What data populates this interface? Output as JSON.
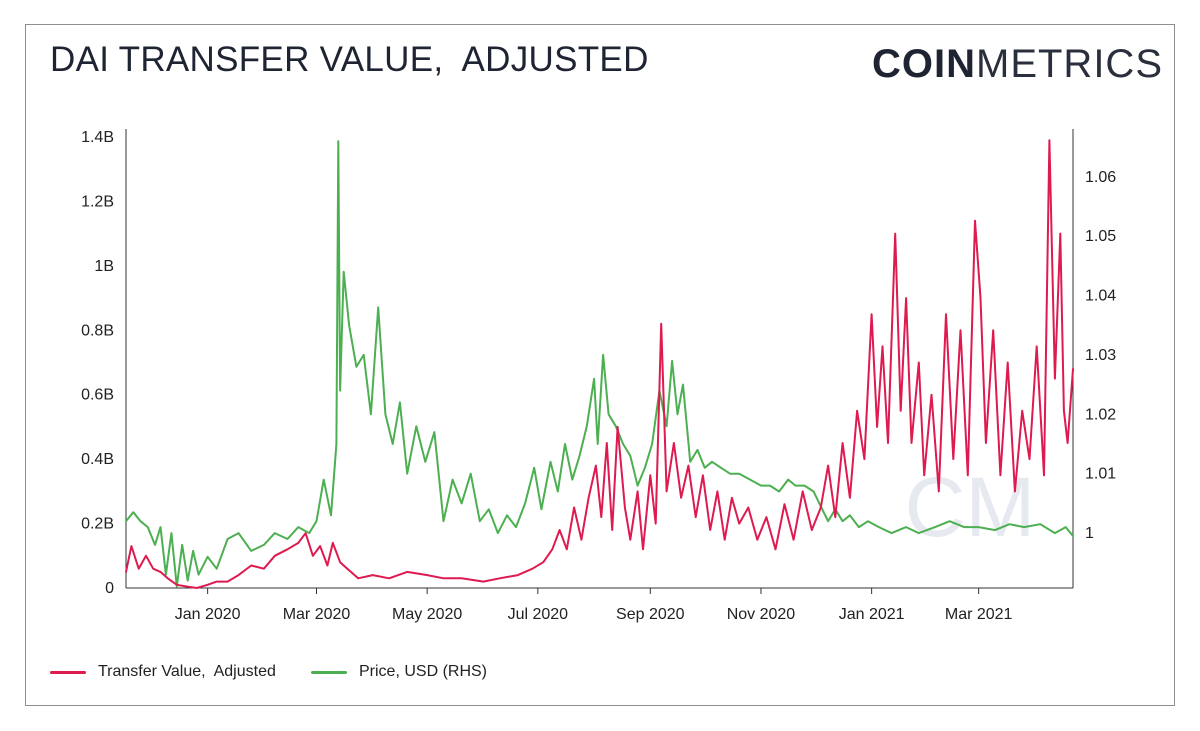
{
  "header": {
    "title": "DAI TRANSFER VALUE,  ADJUSTED",
    "logo_bold": "COIN",
    "logo_light": "METRICS"
  },
  "colors": {
    "transfer": "#de1a4f",
    "price": "#4caf50",
    "axis": "#333333",
    "watermark": "#e6e9f0"
  },
  "chart_data": {
    "type": "line",
    "title": "DAI TRANSFER VALUE,  ADJUSTED",
    "x_range": [
      "2019-11-17",
      "2021-04-22"
    ],
    "x_ticks": [
      {
        "date": "2020-01-01",
        "label": "Jan 2020"
      },
      {
        "date": "2020-03-01",
        "label": "Mar 2020"
      },
      {
        "date": "2020-05-01",
        "label": "May 2020"
      },
      {
        "date": "2020-07-01",
        "label": "Jul 2020"
      },
      {
        "date": "2020-09-01",
        "label": "Sep 2020"
      },
      {
        "date": "2020-11-01",
        "label": "Nov 2020"
      },
      {
        "date": "2021-01-01",
        "label": "Jan 2021"
      },
      {
        "date": "2021-03-01",
        "label": "Mar 2021"
      }
    ],
    "y_left": {
      "range": [
        0,
        1.4
      ],
      "unit": "billion USD",
      "ticks": [
        {
          "value": 0,
          "label": "0"
        },
        {
          "value": 0.2,
          "label": "0.2B"
        },
        {
          "value": 0.4,
          "label": "0.4B"
        },
        {
          "value": 0.6,
          "label": "0.6B"
        },
        {
          "value": 0.8,
          "label": "0.8B"
        },
        {
          "value": 1.0,
          "label": "1B"
        },
        {
          "value": 1.2,
          "label": "1.2B"
        },
        {
          "value": 1.4,
          "label": "1.4B"
        }
      ]
    },
    "y_right": {
      "range": [
        0.99075,
        1.0667
      ],
      "ticks": [
        {
          "value": 1.0,
          "label": "1"
        },
        {
          "value": 1.01,
          "label": "1.01"
        },
        {
          "value": 1.02,
          "label": "1.02"
        },
        {
          "value": 1.03,
          "label": "1.03"
        },
        {
          "value": 1.04,
          "label": "1.04"
        },
        {
          "value": 1.05,
          "label": "1.05"
        },
        {
          "value": 1.06,
          "label": "1.06"
        }
      ]
    },
    "legend_position": "bottom-left",
    "series": [
      {
        "name": "Transfer Value,  Adjusted",
        "axis": "left",
        "points": [
          [
            "2019-11-17",
            0.05
          ],
          [
            "2019-11-20",
            0.13
          ],
          [
            "2019-11-24",
            0.06
          ],
          [
            "2019-11-28",
            0.1
          ],
          [
            "2019-12-02",
            0.06
          ],
          [
            "2019-12-06",
            0.05
          ],
          [
            "2019-12-10",
            0.03
          ],
          [
            "2019-12-15",
            0.01
          ],
          [
            "2019-12-20",
            0.005
          ],
          [
            "2019-12-26",
            0.0
          ],
          [
            "2020-01-01",
            0.01
          ],
          [
            "2020-01-06",
            0.02
          ],
          [
            "2020-01-12",
            0.02
          ],
          [
            "2020-01-18",
            0.04
          ],
          [
            "2020-01-25",
            0.07
          ],
          [
            "2020-02-01",
            0.06
          ],
          [
            "2020-02-07",
            0.1
          ],
          [
            "2020-02-14",
            0.12
          ],
          [
            "2020-02-20",
            0.14
          ],
          [
            "2020-02-24",
            0.17
          ],
          [
            "2020-02-28",
            0.1
          ],
          [
            "2020-03-03",
            0.13
          ],
          [
            "2020-03-07",
            0.07
          ],
          [
            "2020-03-10",
            0.14
          ],
          [
            "2020-03-14",
            0.08
          ],
          [
            "2020-03-18",
            0.06
          ],
          [
            "2020-03-24",
            0.03
          ],
          [
            "2020-04-01",
            0.04
          ],
          [
            "2020-04-10",
            0.03
          ],
          [
            "2020-04-20",
            0.05
          ],
          [
            "2020-05-01",
            0.04
          ],
          [
            "2020-05-10",
            0.03
          ],
          [
            "2020-05-20",
            0.03
          ],
          [
            "2020-06-01",
            0.02
          ],
          [
            "2020-06-10",
            0.03
          ],
          [
            "2020-06-20",
            0.04
          ],
          [
            "2020-06-28",
            0.06
          ],
          [
            "2020-07-04",
            0.08
          ],
          [
            "2020-07-09",
            0.12
          ],
          [
            "2020-07-13",
            0.18
          ],
          [
            "2020-07-17",
            0.12
          ],
          [
            "2020-07-21",
            0.25
          ],
          [
            "2020-07-25",
            0.15
          ],
          [
            "2020-07-29",
            0.28
          ],
          [
            "2020-08-02",
            0.38
          ],
          [
            "2020-08-05",
            0.22
          ],
          [
            "2020-08-08",
            0.45
          ],
          [
            "2020-08-11",
            0.18
          ],
          [
            "2020-08-14",
            0.5
          ],
          [
            "2020-08-18",
            0.25
          ],
          [
            "2020-08-21",
            0.15
          ],
          [
            "2020-08-25",
            0.3
          ],
          [
            "2020-08-28",
            0.12
          ],
          [
            "2020-09-01",
            0.35
          ],
          [
            "2020-09-04",
            0.2
          ],
          [
            "2020-09-07",
            0.82
          ],
          [
            "2020-09-10",
            0.3
          ],
          [
            "2020-09-14",
            0.45
          ],
          [
            "2020-09-18",
            0.28
          ],
          [
            "2020-09-22",
            0.38
          ],
          [
            "2020-09-26",
            0.22
          ],
          [
            "2020-09-30",
            0.35
          ],
          [
            "2020-10-04",
            0.18
          ],
          [
            "2020-10-08",
            0.3
          ],
          [
            "2020-10-12",
            0.15
          ],
          [
            "2020-10-16",
            0.28
          ],
          [
            "2020-10-20",
            0.2
          ],
          [
            "2020-10-25",
            0.25
          ],
          [
            "2020-10-30",
            0.15
          ],
          [
            "2020-11-04",
            0.22
          ],
          [
            "2020-11-09",
            0.12
          ],
          [
            "2020-11-14",
            0.26
          ],
          [
            "2020-11-19",
            0.15
          ],
          [
            "2020-11-24",
            0.3
          ],
          [
            "2020-11-29",
            0.18
          ],
          [
            "2020-12-04",
            0.25
          ],
          [
            "2020-12-08",
            0.38
          ],
          [
            "2020-12-12",
            0.22
          ],
          [
            "2020-12-16",
            0.45
          ],
          [
            "2020-12-20",
            0.28
          ],
          [
            "2020-12-24",
            0.55
          ],
          [
            "2020-12-28",
            0.4
          ],
          [
            "2021-01-01",
            0.85
          ],
          [
            "2021-01-04",
            0.5
          ],
          [
            "2021-01-07",
            0.75
          ],
          [
            "2021-01-10",
            0.45
          ],
          [
            "2021-01-14",
            1.1
          ],
          [
            "2021-01-17",
            0.55
          ],
          [
            "2021-01-20",
            0.9
          ],
          [
            "2021-01-23",
            0.45
          ],
          [
            "2021-01-27",
            0.7
          ],
          [
            "2021-01-30",
            0.35
          ],
          [
            "2021-02-03",
            0.6
          ],
          [
            "2021-02-07",
            0.3
          ],
          [
            "2021-02-11",
            0.85
          ],
          [
            "2021-02-15",
            0.4
          ],
          [
            "2021-02-19",
            0.8
          ],
          [
            "2021-02-23",
            0.35
          ],
          [
            "2021-02-27",
            1.14
          ],
          [
            "2021-03-02",
            0.9
          ],
          [
            "2021-03-05",
            0.45
          ],
          [
            "2021-03-09",
            0.8
          ],
          [
            "2021-03-13",
            0.35
          ],
          [
            "2021-03-17",
            0.7
          ],
          [
            "2021-03-21",
            0.3
          ],
          [
            "2021-03-25",
            0.55
          ],
          [
            "2021-03-29",
            0.4
          ],
          [
            "2021-04-02",
            0.75
          ],
          [
            "2021-04-06",
            0.35
          ],
          [
            "2021-04-09",
            1.39
          ],
          [
            "2021-04-12",
            0.65
          ],
          [
            "2021-04-15",
            1.1
          ],
          [
            "2021-04-17",
            0.55
          ],
          [
            "2021-04-19",
            0.45
          ],
          [
            "2021-04-22",
            0.68
          ]
        ]
      },
      {
        "name": "Price, USD (RHS)",
        "axis": "right",
        "points": [
          [
            "2019-11-17",
            1.002
          ],
          [
            "2019-11-21",
            1.0035
          ],
          [
            "2019-11-25",
            1.002
          ],
          [
            "2019-11-29",
            1.001
          ],
          [
            "2019-12-03",
            0.998
          ],
          [
            "2019-12-06",
            1.001
          ],
          [
            "2019-12-09",
            0.993
          ],
          [
            "2019-12-12",
            1.0
          ],
          [
            "2019-12-15",
            0.991
          ],
          [
            "2019-12-18",
            0.998
          ],
          [
            "2019-12-21",
            0.992
          ],
          [
            "2019-12-24",
            0.997
          ],
          [
            "2019-12-27",
            0.993
          ],
          [
            "2020-01-01",
            0.996
          ],
          [
            "2020-01-06",
            0.994
          ],
          [
            "2020-01-12",
            0.999
          ],
          [
            "2020-01-18",
            1.0
          ],
          [
            "2020-01-25",
            0.997
          ],
          [
            "2020-02-01",
            0.998
          ],
          [
            "2020-02-07",
            1.0
          ],
          [
            "2020-02-14",
            0.999
          ],
          [
            "2020-02-20",
            1.001
          ],
          [
            "2020-02-26",
            1.0
          ],
          [
            "2020-03-01",
            1.002
          ],
          [
            "2020-03-05",
            1.009
          ],
          [
            "2020-03-09",
            1.003
          ],
          [
            "2020-03-12",
            1.015
          ],
          [
            "2020-03-13",
            1.066
          ],
          [
            "2020-03-14",
            1.024
          ],
          [
            "2020-03-16",
            1.044
          ],
          [
            "2020-03-19",
            1.035
          ],
          [
            "2020-03-23",
            1.028
          ],
          [
            "2020-03-27",
            1.03
          ],
          [
            "2020-03-31",
            1.02
          ],
          [
            "2020-04-04",
            1.038
          ],
          [
            "2020-04-08",
            1.02
          ],
          [
            "2020-04-12",
            1.015
          ],
          [
            "2020-04-16",
            1.022
          ],
          [
            "2020-04-20",
            1.01
          ],
          [
            "2020-04-25",
            1.018
          ],
          [
            "2020-04-30",
            1.012
          ],
          [
            "2020-05-05",
            1.017
          ],
          [
            "2020-05-10",
            1.002
          ],
          [
            "2020-05-15",
            1.009
          ],
          [
            "2020-05-20",
            1.005
          ],
          [
            "2020-05-25",
            1.01
          ],
          [
            "2020-05-30",
            1.002
          ],
          [
            "2020-06-04",
            1.004
          ],
          [
            "2020-06-09",
            1.0
          ],
          [
            "2020-06-14",
            1.003
          ],
          [
            "2020-06-19",
            1.001
          ],
          [
            "2020-06-24",
            1.005
          ],
          [
            "2020-06-29",
            1.011
          ],
          [
            "2020-07-03",
            1.004
          ],
          [
            "2020-07-08",
            1.012
          ],
          [
            "2020-07-12",
            1.007
          ],
          [
            "2020-07-16",
            1.015
          ],
          [
            "2020-07-20",
            1.009
          ],
          [
            "2020-07-24",
            1.013
          ],
          [
            "2020-07-28",
            1.018
          ],
          [
            "2020-08-01",
            1.026
          ],
          [
            "2020-08-03",
            1.015
          ],
          [
            "2020-08-06",
            1.03
          ],
          [
            "2020-08-09",
            1.02
          ],
          [
            "2020-08-13",
            1.018
          ],
          [
            "2020-08-17",
            1.015
          ],
          [
            "2020-08-21",
            1.013
          ],
          [
            "2020-08-25",
            1.008
          ],
          [
            "2020-08-29",
            1.011
          ],
          [
            "2020-09-02",
            1.015
          ],
          [
            "2020-09-06",
            1.024
          ],
          [
            "2020-09-10",
            1.018
          ],
          [
            "2020-09-13",
            1.029
          ],
          [
            "2020-09-16",
            1.02
          ],
          [
            "2020-09-19",
            1.025
          ],
          [
            "2020-09-23",
            1.012
          ],
          [
            "2020-09-27",
            1.014
          ],
          [
            "2020-10-01",
            1.011
          ],
          [
            "2020-10-05",
            1.012
          ],
          [
            "2020-10-10",
            1.011
          ],
          [
            "2020-10-15",
            1.01
          ],
          [
            "2020-10-20",
            1.01
          ],
          [
            "2020-10-26",
            1.009
          ],
          [
            "2020-11-01",
            1.008
          ],
          [
            "2020-11-06",
            1.008
          ],
          [
            "2020-11-11",
            1.007
          ],
          [
            "2020-11-16",
            1.009
          ],
          [
            "2020-11-20",
            1.008
          ],
          [
            "2020-11-25",
            1.008
          ],
          [
            "2020-11-30",
            1.007
          ],
          [
            "2020-12-04",
            1.0045
          ],
          [
            "2020-12-08",
            1.002
          ],
          [
            "2020-12-12",
            1.004
          ],
          [
            "2020-12-16",
            1.002
          ],
          [
            "2020-12-20",
            1.003
          ],
          [
            "2020-12-25",
            1.001
          ],
          [
            "2020-12-30",
            1.002
          ],
          [
            "2021-01-05",
            1.001
          ],
          [
            "2021-01-12",
            1.0
          ],
          [
            "2021-01-20",
            1.001
          ],
          [
            "2021-01-27",
            1.0
          ],
          [
            "2021-02-05",
            1.001
          ],
          [
            "2021-02-13",
            1.002
          ],
          [
            "2021-02-21",
            1.001
          ],
          [
            "2021-03-01",
            1.001
          ],
          [
            "2021-03-10",
            1.0005
          ],
          [
            "2021-03-18",
            1.0015
          ],
          [
            "2021-03-26",
            1.001
          ],
          [
            "2021-04-04",
            1.0015
          ],
          [
            "2021-04-12",
            1.0
          ],
          [
            "2021-04-18",
            1.001
          ],
          [
            "2021-04-22",
            0.9995
          ]
        ]
      }
    ]
  }
}
